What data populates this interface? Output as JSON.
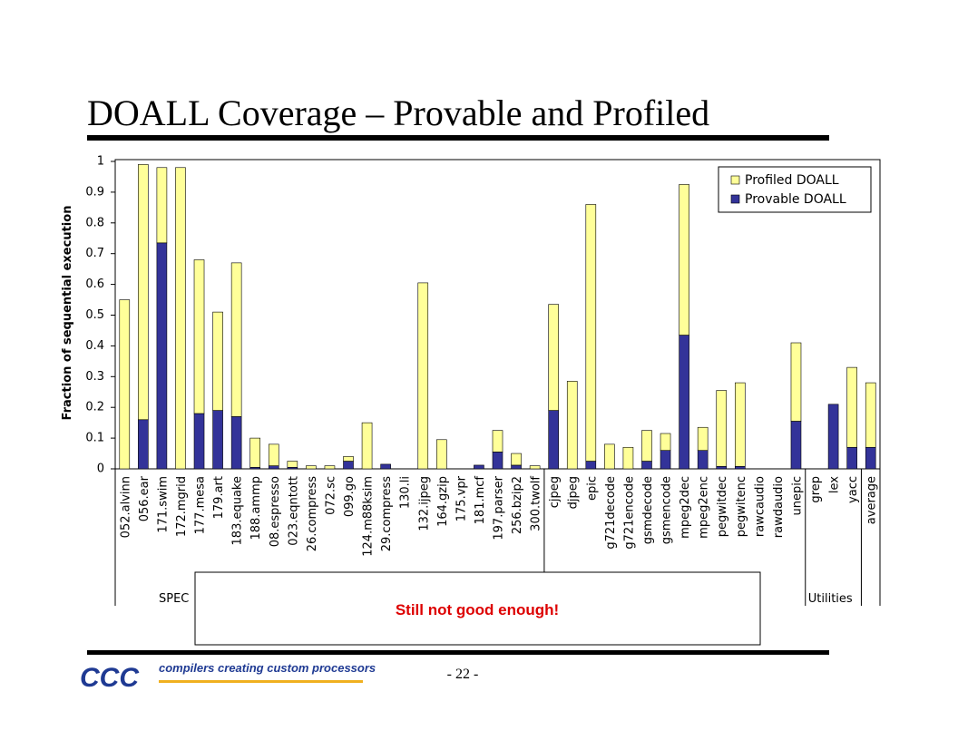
{
  "chart_data": {
    "type": "stacked_bar",
    "title": "DOALL Coverage – Provable and Profiled",
    "y_label": "Fraction of sequential execution",
    "categories": [
      "052.alvinn",
      "056.ear",
      "171.swim",
      "172.mgrid",
      "177.mesa",
      "179.art",
      "183.equake",
      "188.ammp",
      "08.espresso",
      "023.eqntott",
      "26.compress",
      "072.sc",
      "099.go",
      "124.m88ksim",
      "29.compress",
      "130.li",
      "132.ijpeg",
      "164.gzip",
      "175.vpr",
      "181.mcf",
      "197.parser",
      "256.bzip2",
      "300.twolf",
      "cjpeg",
      "djpeg",
      "epic",
      "g721decode",
      "g721encode",
      "gsmdecode",
      "gsmencode",
      "mpeg2dec",
      "mpeg2enc",
      "pegwitdec",
      "pegwitenc",
      "rawcaudio",
      "rawdaudio",
      "unepic",
      "grep",
      "lex",
      "yacc",
      "average"
    ],
    "series": [
      {
        "name": "Provable DOALL",
        "color": "#333399",
        "values": [
          0,
          0.16,
          0.735,
          0,
          0.18,
          0.19,
          0.17,
          0.005,
          0.01,
          0.005,
          0,
          0,
          0.025,
          0,
          0.015,
          0,
          0,
          0,
          0,
          0.012,
          0.055,
          0.012,
          0,
          0.19,
          0,
          0.025,
          0,
          0,
          0.025,
          0.06,
          0.435,
          0.06,
          0.008,
          0.008,
          0,
          0,
          0.155,
          0,
          0.21,
          0.07,
          0.07
        ]
      },
      {
        "name": "Profiled DOALL",
        "color": "#ffff99",
        "values": [
          0.55,
          0.83,
          0.245,
          0.98,
          0.5,
          0.32,
          0.5,
          0.095,
          0.07,
          0.02,
          0.01,
          0.01,
          0.015,
          0.15,
          0,
          0,
          0.605,
          0.095,
          0,
          0,
          0.07,
          0.038,
          0.01,
          0.345,
          0.285,
          0.835,
          0.08,
          0.07,
          0.1,
          0.055,
          0.49,
          0.075,
          0.247,
          0.272,
          0,
          0,
          0.255,
          0,
          0,
          0.26,
          0.21
        ]
      }
    ],
    "groups": [
      "SPEC",
      "Utilities"
    ],
    "ylim": [
      0,
      1
    ],
    "yticks": [
      0,
      0.1,
      0.2,
      0.3,
      0.4,
      0.5,
      0.6,
      0.7,
      0.8,
      0.9,
      1
    ],
    "legend": "top-right"
  },
  "callout": "Still not good enough!",
  "page_number": "- 22 -",
  "logo": {
    "mark": "CCC",
    "tagline": "compilers creating custom processors"
  }
}
